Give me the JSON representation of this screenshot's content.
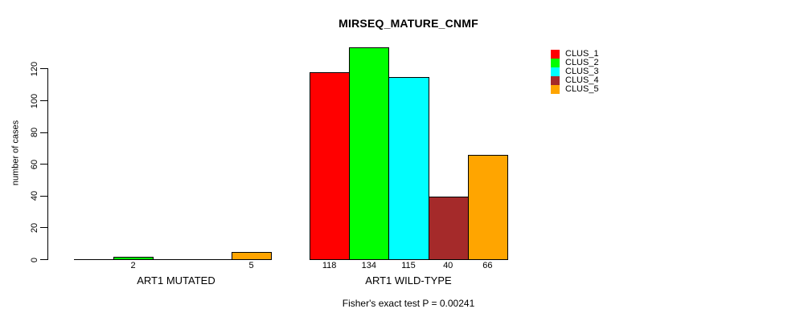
{
  "title": "MIRSEQ_MATURE_CNMF",
  "footer": "Fisher's exact test P = 0.00241",
  "chart_data": {
    "type": "bar",
    "title": "MIRSEQ_MATURE_CNMF",
    "ylabel": "number of cases",
    "xlabel": "",
    "ylim": [
      0,
      134
    ],
    "yticks": [
      0,
      20,
      40,
      60,
      80,
      100,
      120
    ],
    "grid": false,
    "legend_position": "top-right",
    "series_names": [
      "CLUS_1",
      "CLUS_2",
      "CLUS_3",
      "CLUS_4",
      "CLUS_5"
    ],
    "series_colors": [
      "#ff0000",
      "#00ff00",
      "#00ffff",
      "#a52a2a",
      "#ffa500"
    ],
    "groups": [
      {
        "label": "ART1 MUTATED",
        "values": [
          0,
          2,
          0,
          0,
          5
        ]
      },
      {
        "label": "ART1 WILD-TYPE",
        "values": [
          118,
          134,
          115,
          40,
          66
        ]
      }
    ],
    "bar_value_labels": [
      2,
      5,
      118,
      134,
      115,
      40,
      66
    ],
    "annotation": "Fisher's exact test P = 0.00241"
  },
  "legend": {
    "items": [
      {
        "label": "CLUS_1",
        "color": "#ff0000"
      },
      {
        "label": "CLUS_2",
        "color": "#00ff00"
      },
      {
        "label": "CLUS_3",
        "color": "#00ffff"
      },
      {
        "label": "CLUS_4",
        "color": "#a52a2a"
      },
      {
        "label": "CLUS_5",
        "color": "#ffa500"
      }
    ]
  }
}
